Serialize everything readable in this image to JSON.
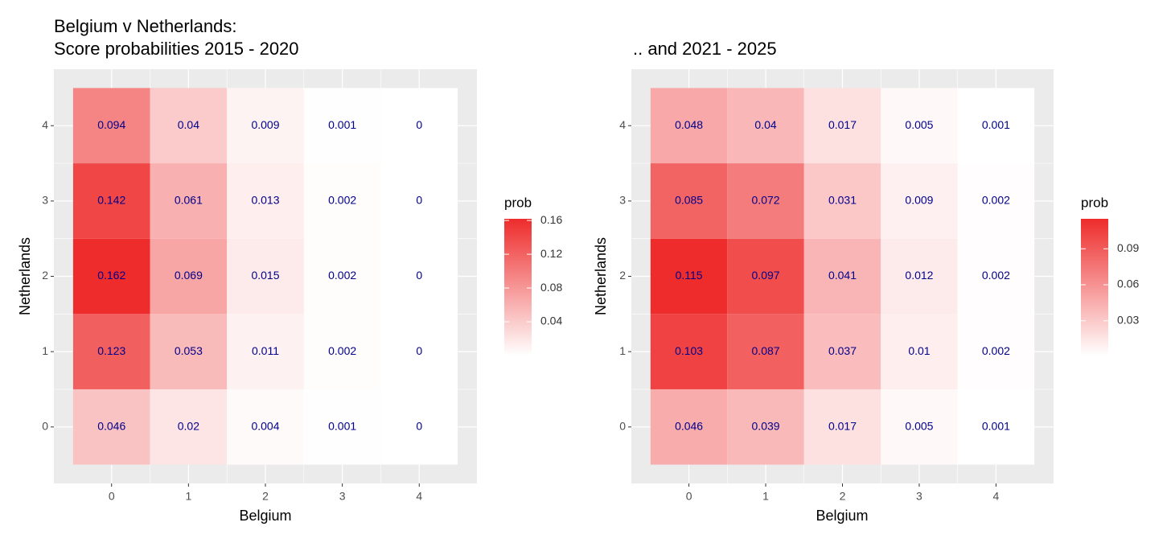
{
  "chart_data": [
    {
      "type": "heatmap",
      "title": [
        "Belgium v Netherlands:",
        "Score probabilities 2015 - 2020"
      ],
      "x_label": "Belgium",
      "y_label": "Netherlands",
      "x": [
        0,
        1,
        2,
        3,
        4
      ],
      "y": [
        0,
        1,
        2,
        3,
        4
      ],
      "xlim": [
        -0.75,
        4.75
      ],
      "ylim": [
        -0.75,
        4.75
      ],
      "xticks": [
        0,
        1,
        2,
        3,
        4
      ],
      "yticks": [
        0,
        1,
        2,
        3,
        4
      ],
      "values": [
        [
          0.046,
          0.02,
          0.004,
          0.001,
          0
        ],
        [
          0.123,
          0.053,
          0.011,
          0.002,
          0
        ],
        [
          0.162,
          0.069,
          0.015,
          0.002,
          0
        ],
        [
          0.142,
          0.061,
          0.013,
          0.002,
          0
        ],
        [
          0.094,
          0.04,
          0.009,
          0.001,
          0
        ]
      ],
      "low_color": "#ffffff",
      "high_color": "#ee2c2c",
      "label_color": "#00008b",
      "grid": true,
      "legend_title": "prob",
      "legend_ticks": [
        0.04,
        0.08,
        0.12,
        0.16
      ]
    },
    {
      "type": "heatmap",
      "title": [
        ".. and 2021 - 2025"
      ],
      "x_label": "Belgium",
      "y_label": "Netherlands",
      "x": [
        0,
        1,
        2,
        3,
        4
      ],
      "y": [
        0,
        1,
        2,
        3,
        4
      ],
      "xlim": [
        -0.75,
        4.75
      ],
      "ylim": [
        -0.75,
        4.75
      ],
      "xticks": [
        0,
        1,
        2,
        3,
        4
      ],
      "yticks": [
        0,
        1,
        2,
        3,
        4
      ],
      "values": [
        [
          0.046,
          0.039,
          0.017,
          0.005,
          0.001
        ],
        [
          0.103,
          0.087,
          0.037,
          0.01,
          0.002
        ],
        [
          0.115,
          0.097,
          0.041,
          0.012,
          0.002
        ],
        [
          0.085,
          0.072,
          0.031,
          0.009,
          0.002
        ],
        [
          0.048,
          0.04,
          0.017,
          0.005,
          0.001
        ]
      ],
      "low_color": "#ffffff",
      "high_color": "#ee2c2c",
      "label_color": "#00008b",
      "grid": true,
      "legend_title": "prob",
      "legend_ticks": [
        0.03,
        0.06,
        0.09
      ]
    }
  ]
}
